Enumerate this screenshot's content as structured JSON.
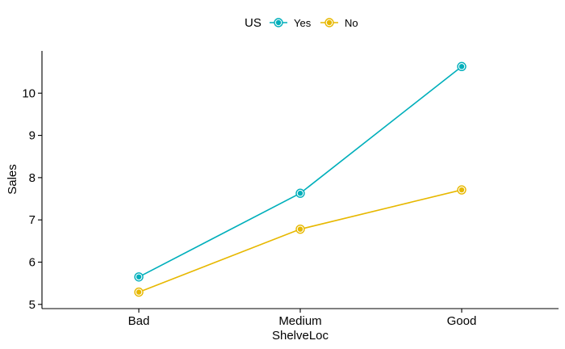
{
  "chart_data": {
    "type": "line",
    "xlabel": "ShelveLoc",
    "ylabel": "Sales",
    "categories": [
      "Bad",
      "Medium",
      "Good"
    ],
    "ylim": [
      4.9,
      11.0
    ],
    "yticks": [
      5,
      6,
      7,
      8,
      9,
      10
    ],
    "legend": {
      "title": "US",
      "position": "top"
    },
    "grid": false,
    "series": [
      {
        "name": "Yes",
        "color": "#00AFBB",
        "values": [
          5.65,
          7.63,
          10.63
        ]
      },
      {
        "name": "No",
        "color": "#E7B800",
        "values": [
          5.29,
          6.78,
          7.71
        ]
      }
    ]
  }
}
